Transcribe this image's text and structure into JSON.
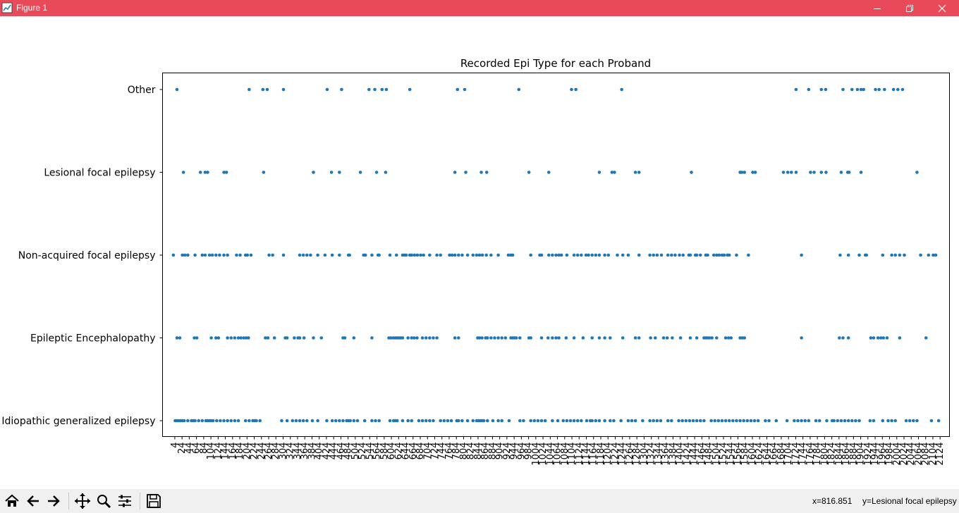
{
  "window": {
    "title": "Figure 1",
    "app_icon": "figure-icon"
  },
  "toolbar": {
    "buttons": [
      {
        "name": "home-button",
        "icon": "home-icon"
      },
      {
        "name": "back-button",
        "icon": "arrow-left-icon"
      },
      {
        "name": "forward-button",
        "icon": "arrow-right-icon"
      },
      {
        "name": "pan-button",
        "icon": "move-icon"
      },
      {
        "name": "zoom-button",
        "icon": "magnifier-icon"
      },
      {
        "name": "configure-subplots-button",
        "icon": "sliders-icon"
      },
      {
        "name": "save-button",
        "icon": "floppy-icon"
      }
    ],
    "status_x": "x=816.851",
    "status_y": "y=Lesional focal epilepsy"
  },
  "chart_data": {
    "type": "scatter",
    "title": "Recorded Epi Type for each Proband",
    "xlabel": "",
    "ylabel": "",
    "marker_color": "#1f77b4",
    "categories": [
      "Idiopathic generalized epilepsy",
      "Epileptic Encephalopathy",
      "Non-acquired focal epilepsy",
      "Lesional focal epilepsy",
      "Other"
    ],
    "xlim": [
      -30,
      2150
    ],
    "xticks": [
      4,
      24,
      44,
      64,
      84,
      104,
      124,
      144,
      164,
      184,
      204,
      224,
      244,
      264,
      284,
      304,
      324,
      344,
      364,
      384,
      404,
      424,
      444,
      464,
      484,
      504,
      524,
      544,
      564,
      584,
      604,
      624,
      644,
      664,
      684,
      704,
      724,
      744,
      764,
      784,
      804,
      824,
      844,
      864,
      884,
      904,
      924,
      944,
      964,
      984,
      1004,
      1024,
      1044,
      1064,
      1084,
      1104,
      1124,
      1144,
      1164,
      1184,
      1204,
      1224,
      1244,
      1264,
      1284,
      1304,
      1324,
      1344,
      1364,
      1384,
      1404,
      1424,
      1444,
      1464,
      1484,
      1504,
      1524,
      1544,
      1564,
      1584,
      1604,
      1624,
      1644,
      1664,
      1684,
      1704,
      1724,
      1744,
      1764,
      1784,
      1804,
      1824,
      1844,
      1864,
      1884,
      1904,
      1924,
      1944,
      1964,
      1984,
      2004,
      2024,
      2044,
      2064,
      2084,
      2104,
      2124
    ],
    "series": [
      {
        "category": "Other",
        "x": [
          10,
          210,
          248,
          260,
          305,
          426,
          466,
          542,
          558,
          578,
          590,
          655,
          787,
          807,
          957,
          1103,
          1115,
          1242,
          1725,
          1760,
          1795,
          1807,
          1855,
          1880,
          1895,
          1905,
          1912,
          1945,
          1955,
          1970,
          1995,
          2007,
          2020
        ]
      },
      {
        "category": "Lesional focal epilepsy",
        "x": [
          28,
          75,
          88,
          95,
          140,
          147,
          250,
          388,
          438,
          460,
          518,
          563,
          588,
          780,
          810,
          853,
          868,
          985,
          1040,
          1180,
          1215,
          1222,
          1280,
          1290,
          1435,
          1570,
          1575,
          1582,
          1605,
          1612,
          1690,
          1702,
          1712,
          1725,
          1765,
          1775,
          1795,
          1808,
          1850,
          1868,
          1872,
          1905,
          2060
        ]
      },
      {
        "category": "Non-acquired focal epilepsy",
        "x": [
          0,
          25,
          32,
          40,
          60,
          80,
          88,
          100,
          108,
          118,
          128,
          140,
          150,
          175,
          185,
          200,
          205,
          215,
          265,
          275,
          305,
          350,
          360,
          370,
          380,
          400,
          420,
          440,
          460,
          485,
          488,
          527,
          532,
          550,
          567,
          570,
          600,
          618,
          635,
          640,
          645,
          655,
          660,
          668,
          676,
          685,
          693,
          710,
          730,
          740,
          765,
          772,
          780,
          790,
          800,
          815,
          830,
          840,
          848,
          856,
          867,
          880,
          900,
          928,
          935,
          940,
          990,
          1015,
          1020,
          1040,
          1050,
          1060,
          1068,
          1075,
          1090,
          1110,
          1120,
          1130,
          1143,
          1150,
          1160,
          1170,
          1180,
          1195,
          1205,
          1230,
          1245,
          1260,
          1290,
          1320,
          1330,
          1340,
          1352,
          1370,
          1380,
          1390,
          1402,
          1412,
          1428,
          1432,
          1446,
          1450,
          1460,
          1475,
          1480,
          1497,
          1505,
          1512,
          1520,
          1526,
          1535,
          1540,
          1560,
          1593,
          1740,
          1847,
          1870,
          1900,
          1917,
          1920,
          1965,
          1990,
          2000,
          2012,
          2025,
          2070,
          2092,
          2105,
          2112
        ]
      },
      {
        "category": "Epileptic Encephalopathy",
        "x": [
          10,
          18,
          58,
          65,
          105,
          118,
          125,
          150,
          160,
          170,
          180,
          187,
          195,
          202,
          208,
          255,
          262,
          280,
          310,
          315,
          335,
          345,
          350,
          362,
          388,
          410,
          470,
          475,
          500,
          550,
          597,
          603,
          610,
          615,
          620,
          625,
          630,
          635,
          650,
          660,
          667,
          675,
          690,
          700,
          710,
          720,
          730,
          780,
          790,
          843,
          848,
          855,
          865,
          870,
          880,
          890,
          900,
          910,
          920,
          935,
          940,
          945,
          950,
          960,
          985,
          990,
          1020,
          1038,
          1050,
          1060,
          1068,
          1088,
          1110,
          1135,
          1160,
          1180,
          1195,
          1210,
          1245,
          1280,
          1290,
          1322,
          1335,
          1358,
          1368,
          1382,
          1405,
          1432,
          1450,
          1470,
          1475,
          1480,
          1485,
          1492,
          1505,
          1530,
          1538,
          1545,
          1570,
          1576,
          1582,
          1740,
          1845,
          1855,
          1870,
          1932,
          1940,
          1952,
          1960,
          1967,
          1977,
          2012,
          2085
        ]
      },
      {
        "category": "Idiopathic generalized epilepsy",
        "x": [
          5,
          10,
          15,
          20,
          25,
          30,
          40,
          50,
          55,
          60,
          70,
          80,
          90,
          95,
          100,
          105,
          110,
          120,
          130,
          140,
          150,
          160,
          170,
          180,
          200,
          210,
          220,
          225,
          230,
          240,
          300,
          315,
          330,
          340,
          350,
          360,
          370,
          385,
          400,
          425,
          440,
          450,
          460,
          470,
          480,
          485,
          490,
          500,
          510,
          530,
          550,
          560,
          570,
          600,
          610,
          615,
          620,
          635,
          650,
          660,
          680,
          690,
          700,
          710,
          720,
          740,
          750,
          760,
          770,
          785,
          790,
          800,
          815,
          830,
          840,
          845,
          850,
          855,
          860,
          870,
          885,
          900,
          910,
          930,
          960,
          970,
          990,
          1000,
          1010,
          1020,
          1030,
          1050,
          1065,
          1080,
          1090,
          1100,
          1110,
          1120,
          1130,
          1145,
          1155,
          1160,
          1170,
          1180,
          1195,
          1210,
          1220,
          1240,
          1260,
          1270,
          1280,
          1300,
          1320,
          1330,
          1340,
          1350,
          1370,
          1380,
          1400,
          1410,
          1420,
          1430,
          1440,
          1450,
          1460,
          1470,
          1490,
          1500,
          1510,
          1520,
          1530,
          1540,
          1550,
          1560,
          1570,
          1580,
          1590,
          1600,
          1610,
          1620,
          1640,
          1650,
          1670,
          1700,
          1720,
          1730,
          1740,
          1750,
          1760,
          1780,
          1790,
          1810,
          1825,
          1830,
          1840,
          1850,
          1860,
          1870,
          1880,
          1890,
          1900,
          1930,
          1940,
          1965,
          1980,
          1990,
          2000,
          2030,
          2040,
          2050,
          2060,
          2100,
          2120
        ]
      }
    ]
  }
}
